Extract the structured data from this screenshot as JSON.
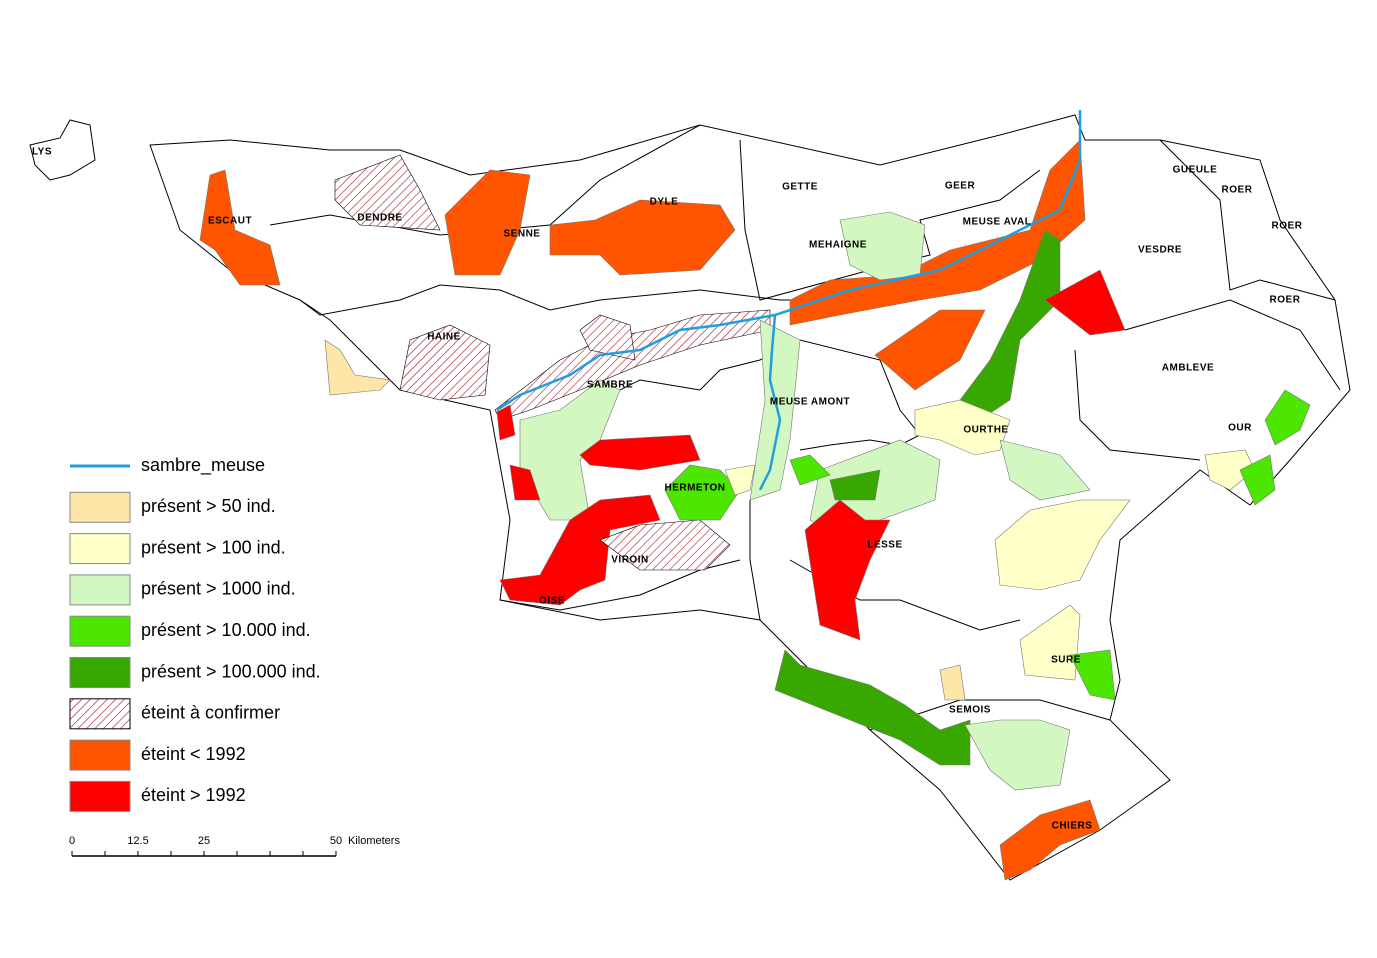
{
  "regions": [
    "LYS",
    "ESCAUT",
    "DENDRE",
    "SENNE",
    "DYLE",
    "GETTE",
    "GEER",
    "GUEULE",
    "ROER",
    "ROER",
    "ROER",
    "MEUSE AVAL",
    "MEHAIGNE",
    "VESDRE",
    "HAINE",
    "SAMBRE",
    "MEUSE AMONT",
    "AMBLEVE",
    "OURTHE",
    "OUR",
    "HERMETON",
    "LESSE",
    "VIROIN",
    "OISE",
    "SURE",
    "SEMOIS",
    "CHIERS"
  ],
  "legend": {
    "items": [
      {
        "label": "sambre_meuse",
        "color": "#1f9fe0"
      },
      {
        "label": "présent > 50 ind.",
        "color": "#fde6a8"
      },
      {
        "label": "présent > 100 ind.",
        "color": "#ffffc8"
      },
      {
        "label": "présent > 1000 ind.",
        "color": "#d3f7c0"
      },
      {
        "label": "présent > 10.000 ind.",
        "color": "#4ce600"
      },
      {
        "label": "présent > 100.000 ind.",
        "color": "#38a800"
      },
      {
        "label": "éteint à confirmer",
        "color": "hatch"
      },
      {
        "label": "éteint < 1992",
        "color": "#ff5500"
      },
      {
        "label": "éteint > 1992",
        "color": "#ff0000"
      }
    ]
  },
  "scale_bar": {
    "labels": [
      "0",
      "12.5",
      "25",
      "50"
    ],
    "unit": "Kilometers"
  }
}
